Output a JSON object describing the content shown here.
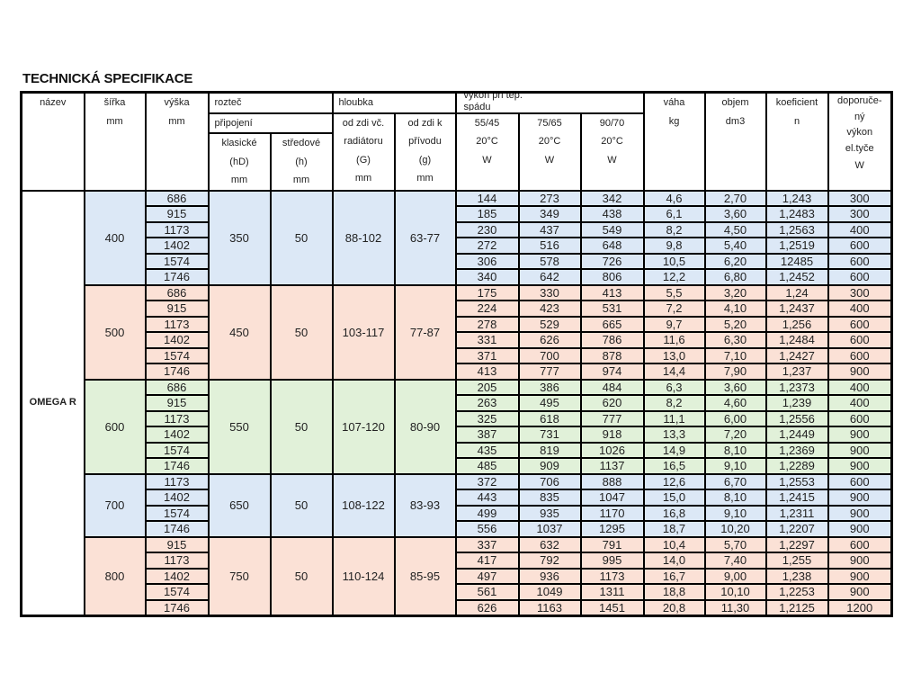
{
  "title": "TECHNICKÁ SPECIFIKACE",
  "colors": {
    "blue": "#dce8f6",
    "pink": "#fbe1d6",
    "green": "#e1f1d9",
    "border": "#000000"
  },
  "header": {
    "nazev": "název",
    "sirka": {
      "label": "šířka",
      "unit": "mm"
    },
    "vyska": {
      "label": "výška",
      "unit": "mm"
    },
    "roztec": "rozteč",
    "pripojeni": "připojení",
    "klasicke": [
      "klasické",
      "(hD)",
      "mm"
    ],
    "stredove": [
      "středové",
      "(h)",
      "mm"
    ],
    "hloubka": "hloubka",
    "od_zdi_radiatoru": [
      "od zdi vč.",
      "radiátoru",
      "(G)",
      "mm"
    ],
    "od_zdi_privodu": [
      "od zdi k",
      "přívodu",
      "(g)",
      "mm"
    ],
    "vykon": "výkon při tep. spádu",
    "spady": [
      [
        "55/45",
        "20°C",
        "W"
      ],
      [
        "75/65",
        "20°C",
        "W"
      ],
      [
        "90/70",
        "20°C",
        "W"
      ]
    ],
    "vaha": {
      "label": "váha",
      "unit": "kg"
    },
    "objem": {
      "label": "objem",
      "unit": "dm3"
    },
    "koeficient": {
      "label": "koeficient",
      "unit": "n"
    },
    "doporuceny": {
      "lines": [
        "doporuče-",
        "ný",
        "výkon",
        "el.tyče"
      ],
      "unit": "W"
    }
  },
  "model": "OMEGA R",
  "groups": [
    {
      "sirka": "400",
      "color": "blue",
      "klasicke": "350",
      "stredove": "50",
      "G": "88-102",
      "g": "63-77",
      "rows": [
        [
          "686",
          "144",
          "273",
          "342",
          "4,6",
          "2,70",
          "1,243",
          "300"
        ],
        [
          "915",
          "185",
          "349",
          "438",
          "6,1",
          "3,60",
          "1,2483",
          "300"
        ],
        [
          "1173",
          "230",
          "437",
          "549",
          "8,2",
          "4,50",
          "1,2563",
          "400"
        ],
        [
          "1402",
          "272",
          "516",
          "648",
          "9,8",
          "5,40",
          "1,2519",
          "600"
        ],
        [
          "1574",
          "306",
          "578",
          "726",
          "10,5",
          "6,20",
          "12485",
          "600"
        ],
        [
          "1746",
          "340",
          "642",
          "806",
          "12,2",
          "6,80",
          "1,2452",
          "600"
        ]
      ]
    },
    {
      "sirka": "500",
      "color": "pink",
      "klasicke": "450",
      "stredove": "50",
      "G": "103-117",
      "g": "77-87",
      "rows": [
        [
          "686",
          "175",
          "330",
          "413",
          "5,5",
          "3,20",
          "1,24",
          "300"
        ],
        [
          "915",
          "224",
          "423",
          "531",
          "7,2",
          "4,10",
          "1,2437",
          "400"
        ],
        [
          "1173",
          "278",
          "529",
          "665",
          "9,7",
          "5,20",
          "1,256",
          "600"
        ],
        [
          "1402",
          "331",
          "626",
          "786",
          "11,6",
          "6,30",
          "1,2484",
          "600"
        ],
        [
          "1574",
          "371",
          "700",
          "878",
          "13,0",
          "7,10",
          "1,2427",
          "600"
        ],
        [
          "1746",
          "413",
          "777",
          "974",
          "14,4",
          "7,90",
          "1,237",
          "900"
        ]
      ]
    },
    {
      "sirka": "600",
      "color": "green",
      "klasicke": "550",
      "stredove": "50",
      "G": "107-120",
      "g": "80-90",
      "rows": [
        [
          "686",
          "205",
          "386",
          "484",
          "6,3",
          "3,60",
          "1,2373",
          "400"
        ],
        [
          "915",
          "263",
          "495",
          "620",
          "8,2",
          "4,60",
          "1,239",
          "400"
        ],
        [
          "1173",
          "325",
          "618",
          "777",
          "11,1",
          "6,00",
          "1,2556",
          "600"
        ],
        [
          "1402",
          "387",
          "731",
          "918",
          "13,3",
          "7,20",
          "1,2449",
          "900"
        ],
        [
          "1574",
          "435",
          "819",
          "1026",
          "14,9",
          "8,10",
          "1,2369",
          "900"
        ],
        [
          "1746",
          "485",
          "909",
          "1137",
          "16,5",
          "9,10",
          "1,2289",
          "900"
        ]
      ]
    },
    {
      "sirka": "700",
      "color": "blue",
      "klasicke": "650",
      "stredove": "50",
      "G": "108-122",
      "g": "83-93",
      "rows": [
        [
          "1173",
          "372",
          "706",
          "888",
          "12,6",
          "6,70",
          "1,2553",
          "600"
        ],
        [
          "1402",
          "443",
          "835",
          "1047",
          "15,0",
          "8,10",
          "1,2415",
          "900"
        ],
        [
          "1574",
          "499",
          "935",
          "1170",
          "16,8",
          "9,10",
          "1,2311",
          "900"
        ],
        [
          "1746",
          "556",
          "1037",
          "1295",
          "18,7",
          "10,20",
          "1,2207",
          "900"
        ]
      ]
    },
    {
      "sirka": "800",
      "color": "pink",
      "klasicke": "750",
      "stredove": "50",
      "G": "110-124",
      "g": "85-95",
      "rows": [
        [
          "915",
          "337",
          "632",
          "791",
          "10,4",
          "5,70",
          "1,2297",
          "600"
        ],
        [
          "1173",
          "417",
          "792",
          "995",
          "14,0",
          "7,40",
          "1,255",
          "900"
        ],
        [
          "1402",
          "497",
          "936",
          "1173",
          "16,7",
          "9,00",
          "1,238",
          "900"
        ],
        [
          "1574",
          "561",
          "1049",
          "1311",
          "18,8",
          "10,10",
          "1,2253",
          "900"
        ],
        [
          "1746",
          "626",
          "1163",
          "1451",
          "20,8",
          "11,30",
          "1,2125",
          "1200"
        ]
      ]
    }
  ]
}
